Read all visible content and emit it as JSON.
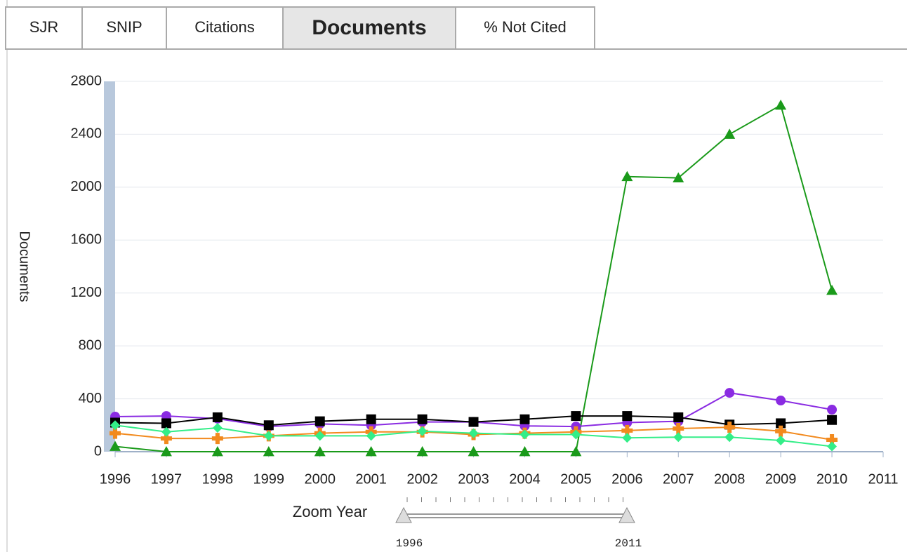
{
  "tabs": [
    "SJR",
    "SNIP",
    "Citations",
    "Documents",
    "% Not Cited"
  ],
  "active_tab": 3,
  "chart_data": {
    "type": "line",
    "y_label": "Documents",
    "x": [
      1996,
      1997,
      1998,
      1999,
      2000,
      2001,
      2002,
      2003,
      2004,
      2005,
      2006,
      2007,
      2008,
      2009,
      2010
    ],
    "xlim": [
      1996,
      2011
    ],
    "xticks": [
      1996,
      1997,
      1998,
      1999,
      2000,
      2001,
      2002,
      2003,
      2004,
      2005,
      2006,
      2007,
      2008,
      2009,
      2010,
      2011
    ],
    "ylim": [
      0,
      2800
    ],
    "yticks": [
      0,
      400,
      800,
      1200,
      1600,
      2000,
      2400,
      2800
    ],
    "grid": true,
    "series": [
      {
        "color": "#1a9a1a",
        "marker": "triangle",
        "values": [
          40,
          0,
          0,
          0,
          0,
          0,
          0,
          0,
          0,
          0,
          2080,
          2070,
          2400,
          2620,
          1220
        ]
      },
      {
        "color": "#8a2be2",
        "marker": "circle",
        "values": [
          265,
          270,
          250,
          190,
          210,
          200,
          225,
          225,
          195,
          190,
          220,
          230,
          445,
          387,
          318
        ]
      },
      {
        "color": "#000000",
        "marker": "square",
        "values": [
          220,
          215,
          260,
          200,
          230,
          245,
          245,
          225,
          245,
          270,
          270,
          260,
          205,
          215,
          240
        ]
      },
      {
        "color": "#f28a1e",
        "marker": "plus",
        "values": [
          140,
          100,
          100,
          120,
          140,
          150,
          150,
          130,
          140,
          150,
          160,
          175,
          185,
          155,
          90
        ]
      },
      {
        "color": "#33ee88",
        "marker": "diamond",
        "values": [
          200,
          150,
          180,
          120,
          120,
          120,
          155,
          140,
          130,
          130,
          105,
          110,
          110,
          85,
          40
        ]
      }
    ]
  },
  "zoom": {
    "label": "Zoom Year",
    "start": 1996,
    "end": 2011
  }
}
